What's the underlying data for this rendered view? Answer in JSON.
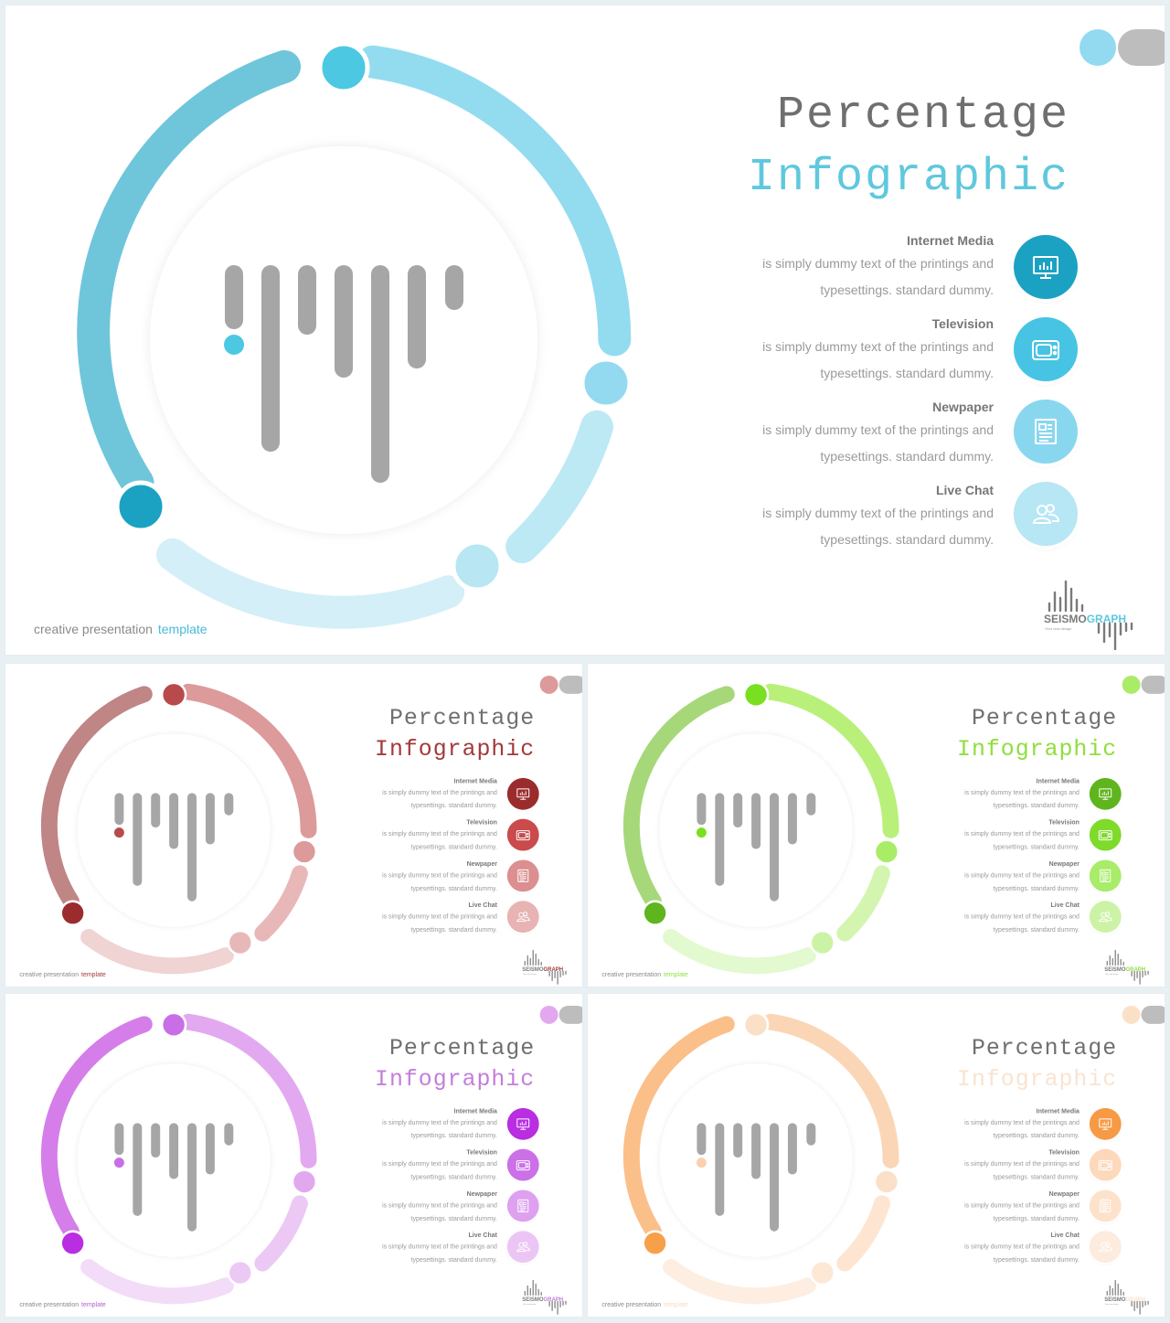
{
  "title_line1": "Percentage",
  "title_line2": "Infographic",
  "footer_text": "creative presentation",
  "footer_accent": "template",
  "brand": {
    "name_part1": "SEISMO",
    "name_part2": "GRAPH",
    "tagline": "Your new design"
  },
  "items": [
    {
      "title": "Internet Media",
      "line1": "is simply dummy  text of the printings and",
      "line2": "typesettings. standard dummy.",
      "icon": "monitor-chart-icon"
    },
    {
      "title": "Television",
      "line1": "is simply dummy  text of the printings and",
      "line2": "typesettings. standard dummy.",
      "icon": "tv-icon"
    },
    {
      "title": "Newpaper",
      "line1": "is simply dummy  text of the printings and",
      "line2": "typesettings. standard dummy.",
      "icon": "newspaper-icon"
    },
    {
      "title": "Live Chat",
      "line1": "is simply dummy  text of the printings and",
      "line2": "typesettings. standard dummy.",
      "icon": "users-icon"
    }
  ],
  "themes": [
    {
      "name": "blue",
      "title_color": "#5fc8dd",
      "footer_accent": "#46bcd6",
      "ring": [
        "#6fc6db",
        "#93dcf0",
        "#bde9f5",
        "#d4eff8"
      ],
      "dots": [
        "#4cc8e2",
        "#93daf0",
        "#b8e6f3",
        "#1ba2c3"
      ],
      "icons": [
        "#1ba2c3",
        "#47c4e3",
        "#89d7ef",
        "#b7e6f5"
      ],
      "bar_dot": "#4cc8e2"
    },
    {
      "name": "red",
      "title_color": "#a3393a",
      "footer_accent": "#a3393a",
      "ring": [
        "#c08585",
        "#dc9a9a",
        "#e8b8b8",
        "#f0d3d3"
      ],
      "dots": [
        "#b84a4c",
        "#dc9a9a",
        "#e8b8b8",
        "#9b2c2e"
      ],
      "icons": [
        "#9b2c2e",
        "#c94b4c",
        "#dc8f90",
        "#e7b3b3"
      ],
      "bar_dot": "#b84a4c"
    },
    {
      "name": "green",
      "title_color": "#8fde3c",
      "footer_accent": "#8fde3c",
      "ring": [
        "#a6d87a",
        "#b8f07a",
        "#d3f5b0",
        "#e3f9cf"
      ],
      "dots": [
        "#78e020",
        "#a9ec68",
        "#ccf3a5",
        "#5fb51d"
      ],
      "icons": [
        "#5fb51d",
        "#7edb2a",
        "#a8ec6a",
        "#ccf3a5"
      ],
      "bar_dot": "#78e020"
    },
    {
      "name": "purple",
      "title_color": "#c47ddc",
      "footer_accent": "#b15fd1",
      "ring": [
        "#d57ee9",
        "#e3a9f0",
        "#ecc9f5",
        "#f3dcf8"
      ],
      "dots": [
        "#c96ee6",
        "#e2a8ef",
        "#ecc9f5",
        "#b82ee0"
      ],
      "icons": [
        "#b82ee0",
        "#cc70e8",
        "#dda1ef",
        "#ebc6f5"
      ],
      "bar_dot": "#c96ee6"
    },
    {
      "name": "orange",
      "title_color": "#f9e3d0",
      "footer_accent": "#f7dcc4",
      "ring": [
        "#fbbf8a",
        "#fbd6b6",
        "#fde5d1",
        "#fdeee1"
      ],
      "dots": [
        "#fbe0c8",
        "#fbe0c8",
        "#fde8d6",
        "#f7a04a"
      ],
      "icons": [
        "#f69a45",
        "#fcd9bb",
        "#fde2cb",
        "#fdebdd"
      ],
      "bar_dot": "#fbd0b0"
    }
  ]
}
